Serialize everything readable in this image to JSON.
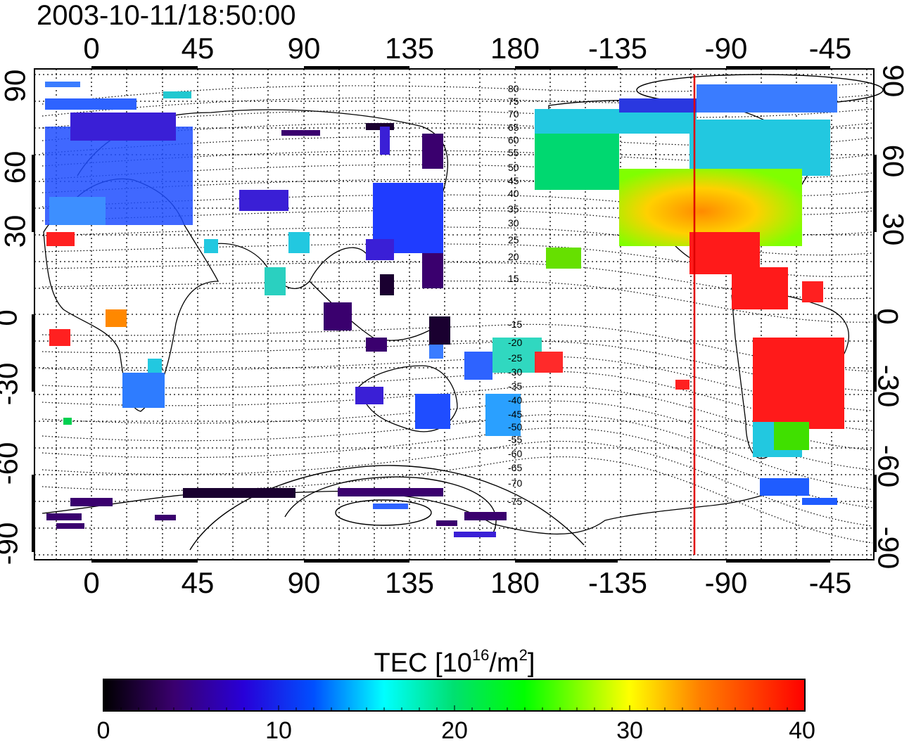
{
  "title": "2003-10-11/18:50:00",
  "map": {
    "lon_tick_labels": [
      "0",
      "45",
      "90",
      "135",
      "180",
      "-135",
      "-90",
      "-45"
    ],
    "lat_tick_labels": [
      "90",
      "60",
      "30",
      "0",
      "-30",
      "-60",
      "-90"
    ],
    "contour_labels_north": [
      "80",
      "75",
      "70",
      "65",
      "60",
      "55",
      "50",
      "45",
      "40",
      "35",
      "30",
      "25",
      "20",
      "15"
    ],
    "contour_labels_south": [
      "-15",
      "-20",
      "-25",
      "-30",
      "-35",
      "-40",
      "-45",
      "-50",
      "-55",
      "-60",
      "-65",
      "-70",
      "-75"
    ],
    "marker_line_color": "#e00000"
  },
  "colorbar": {
    "title_prefix": "TEC  [10",
    "title_exp1": "16",
    "title_mid": "/m",
    "title_exp2": "2",
    "title_suffix": "]",
    "tick_labels": [
      "0",
      "10",
      "20",
      "30",
      "40"
    ],
    "colors": [
      "#000000",
      "#3a006e",
      "#2800d8",
      "#0050ff",
      "#00a8ff",
      "#00ffff",
      "#00e070",
      "#00ff00",
      "#ffff00",
      "#ff8000",
      "#ff0000"
    ]
  }
}
